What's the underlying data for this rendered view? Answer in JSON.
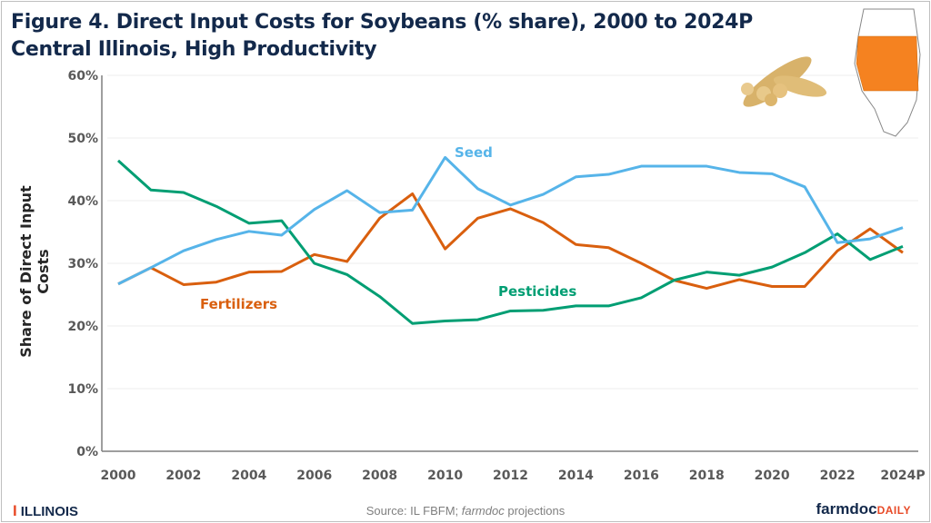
{
  "header": {
    "title_line1": "Figure 4. Direct Input Costs for Soybeans (% share), 2000 to 2024P",
    "title_line2": "Central Illinois, High Productivity"
  },
  "footer": {
    "source_prefix": "Source: IL FBFM; ",
    "source_italic": "farmdoc",
    "source_suffix": " projections",
    "left_logo_text": "ILLINOIS",
    "right_logo_main": "farmdoc",
    "right_logo_sub": "DAILY"
  },
  "images": {
    "soybean": "soybean-pods-image",
    "map": "illinois-map-central-highlighted"
  },
  "chart_data": {
    "type": "line",
    "title": "Figure 4. Direct Input Costs for Soybeans (% share), 2000 to 2024P",
    "subtitle": "Central Illinois, High Productivity",
    "xlabel": "",
    "ylabel": "Share of Direct Input Costs",
    "ylim": [
      0,
      60
    ],
    "yticks": [
      "0%",
      "10%",
      "20%",
      "30%",
      "40%",
      "50%",
      "60%"
    ],
    "xticks": [
      "2000",
      "2002",
      "2004",
      "2006",
      "2008",
      "2010",
      "2012",
      "2014",
      "2016",
      "2018",
      "2020",
      "2022",
      "2024P"
    ],
    "grid": true,
    "x": [
      2000,
      2001,
      2002,
      2003,
      2004,
      2005,
      2006,
      2007,
      2008,
      2009,
      2010,
      2011,
      2012,
      2013,
      2014,
      2015,
      2016,
      2017,
      2018,
      2019,
      2020,
      2021,
      2022,
      2023,
      2024
    ],
    "series": [
      {
        "name": "Fertilizers",
        "color": "#d95f0e",
        "values": [
          26.7,
          29.3,
          26.6,
          27.0,
          28.6,
          28.7,
          31.4,
          30.3,
          37.2,
          41.1,
          32.3,
          37.2,
          38.7,
          36.5,
          33.0,
          32.5,
          30.0,
          27.3,
          26.0,
          27.4,
          26.3,
          26.3,
          32.0,
          35.5,
          31.7
        ]
      },
      {
        "name": "Pesticides",
        "color": "#009e73",
        "values": [
          46.4,
          41.7,
          41.3,
          39.1,
          36.4,
          36.8,
          30.0,
          28.2,
          24.7,
          20.4,
          20.8,
          21.0,
          22.4,
          22.5,
          23.2,
          23.2,
          24.5,
          27.3,
          28.6,
          28.1,
          29.4,
          31.7,
          34.7,
          30.6,
          32.7
        ]
      },
      {
        "name": "Seed",
        "color": "#56b4e9",
        "values": [
          26.7,
          29.3,
          32.0,
          33.8,
          35.1,
          34.5,
          38.6,
          41.6,
          38.1,
          38.5,
          46.9,
          41.9,
          39.3,
          41.0,
          43.8,
          44.2,
          45.5,
          45.5,
          45.5,
          44.5,
          44.3,
          42.2,
          33.3,
          33.9,
          35.7
        ]
      }
    ],
    "legend": "inline labels"
  }
}
